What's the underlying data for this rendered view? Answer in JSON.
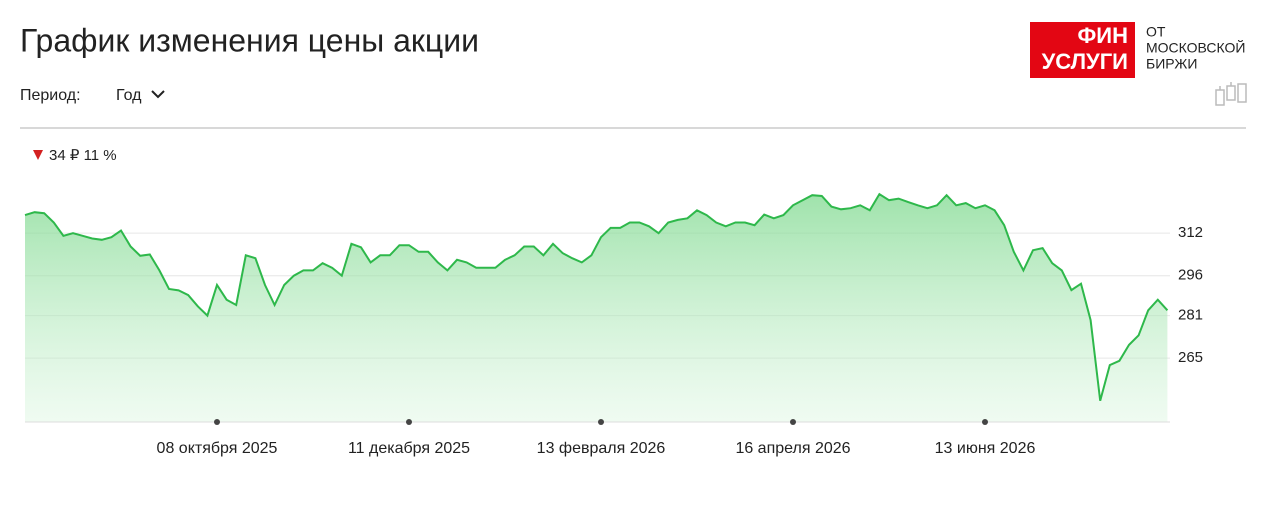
{
  "header": {
    "title": "График изменения цены акции",
    "period_label": "Период:",
    "period_value": "Год",
    "logo_mark": [
      "ФИН",
      "УСЛУГИ"
    ],
    "logo_text": [
      "ОТ",
      "МОСКОВСКОЙ",
      "БИРЖИ"
    ]
  },
  "chart_data": {
    "type": "area",
    "annotation": "34 ₽ 11 %",
    "color": "#2eb84b",
    "categories": [
      null,
      null,
      null,
      null,
      null,
      null,
      null,
      null,
      null,
      null,
      null,
      null,
      null,
      null,
      null,
      null,
      null,
      null,
      null,
      null,
      "08 октября 2025",
      null,
      null,
      null,
      null,
      null,
      null,
      null,
      null,
      null,
      null,
      null,
      null,
      null,
      null,
      null,
      null,
      null,
      null,
      null,
      "11 декабря 2025",
      null,
      null,
      null,
      null,
      null,
      null,
      null,
      null,
      null,
      null,
      null,
      null,
      null,
      null,
      null,
      null,
      null,
      null,
      null,
      "13 февраля 2026",
      null,
      null,
      null,
      null,
      null,
      null,
      null,
      null,
      null,
      null,
      null,
      null,
      null,
      null,
      null,
      null,
      null,
      null,
      null,
      "16 апреля 2026",
      null,
      null,
      null,
      null,
      null,
      null,
      null,
      null,
      null,
      null,
      null,
      null,
      null,
      null,
      null,
      null,
      null,
      null,
      null,
      "13 июня 2026",
      null,
      null,
      null,
      null,
      null,
      null,
      null,
      null,
      null,
      null,
      null,
      null,
      null,
      null,
      null,
      null,
      null,
      null,
      null
    ],
    "values": [
      318.8,
      319.9,
      319.5,
      316,
      311,
      312,
      311,
      310,
      309.5,
      310.5,
      313,
      307,
      303.5,
      304,
      298,
      291,
      290.5,
      288.7,
      284.5,
      281,
      292.5,
      287,
      285,
      303.7,
      302.6,
      292.5,
      285,
      292.5,
      296,
      298,
      298,
      300.7,
      299,
      296,
      308,
      306.7,
      301,
      303.7,
      303.7,
      307.5,
      307.5,
      305,
      305,
      301,
      298,
      302,
      301,
      299,
      299,
      299,
      302,
      303.7,
      307,
      307,
      303.7,
      308,
      304.5,
      302.6,
      301,
      303.7,
      310.5,
      314,
      314,
      316,
      316,
      314.6,
      312,
      316,
      317,
      317.6,
      320.6,
      318.8,
      316,
      314.6,
      316,
      316,
      315,
      319,
      317.6,
      318.8,
      322.5,
      324.4,
      326.3,
      326,
      322,
      321,
      321.4,
      322.5,
      320.6,
      326.7,
      324.4,
      325,
      323.7,
      322.5,
      321.4,
      322.5,
      326.3,
      322.5,
      323.3,
      321.4,
      322.5,
      320.6,
      315,
      305,
      298,
      305.6,
      306.4,
      300.7,
      298,
      290.6,
      293,
      279.3,
      249,
      262.4,
      264,
      270,
      273.6,
      283,
      287,
      283
    ],
    "ylim": [
      241,
      332
    ],
    "yticks": [
      265,
      281,
      296,
      312
    ],
    "grid": true
  }
}
